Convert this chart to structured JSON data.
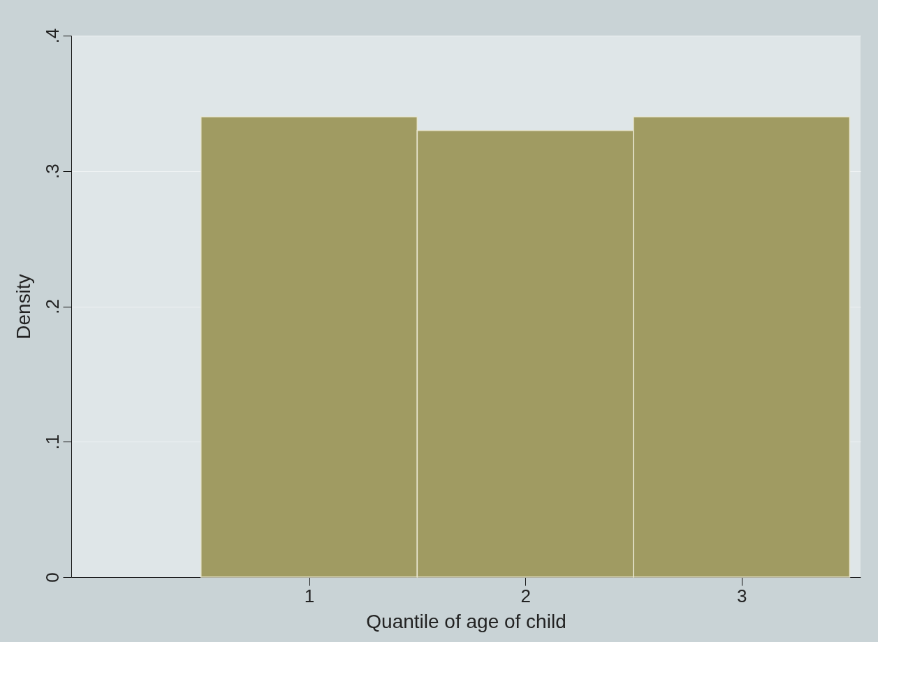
{
  "chart_data": {
    "type": "histogram",
    "xlabel": "Quantile of age of child",
    "ylabel": "Density",
    "bins": [
      0.5,
      1.5,
      2.5,
      3.5
    ],
    "values": [
      0.34,
      0.33,
      0.34
    ],
    "color": "#a09b62",
    "xlim": [
      -0.1,
      3.55
    ],
    "xticks": [
      1,
      2,
      3
    ],
    "ylim": [
      0,
      0.4
    ],
    "yticks": [
      0,
      {
        "value": 0.1,
        "label": ".1"
      },
      {
        "value": 0.2,
        "label": ".2"
      },
      {
        "value": 0.3,
        "label": ".3"
      },
      {
        "value": 0.4,
        "label": ".4"
      }
    ],
    "grid": "y"
  }
}
